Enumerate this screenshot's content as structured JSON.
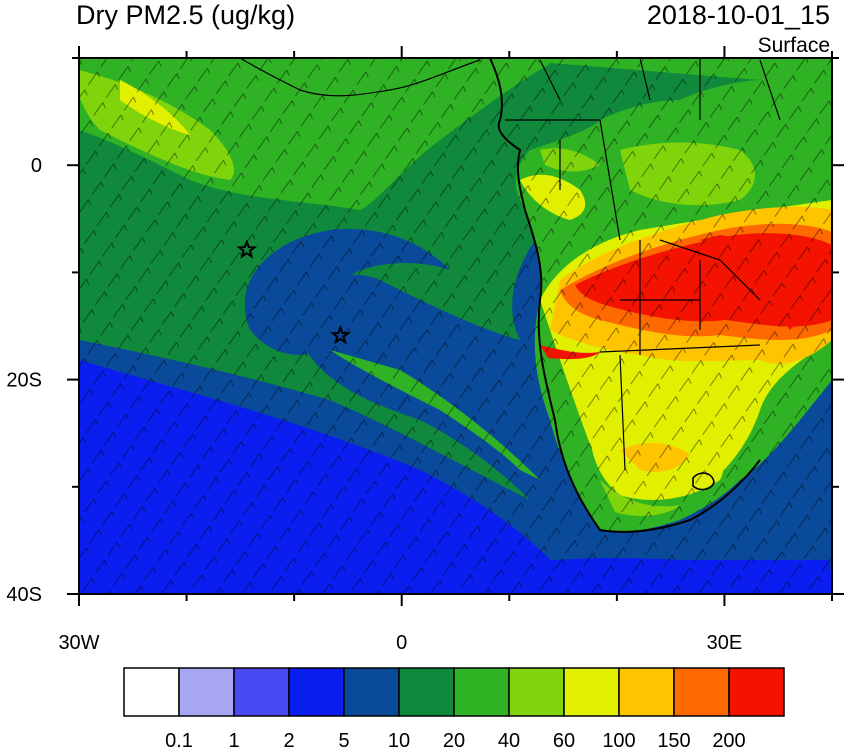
{
  "header": {
    "variable": "Dry PM2.5 (ug/kg)",
    "valid_time": "2018-10-01_15",
    "level": "Surface"
  },
  "map": {
    "lon_range": [
      -30,
      40
    ],
    "lat_range": [
      -40,
      10
    ],
    "x_ticks": [
      {
        "lon": -30,
        "label": "30W"
      },
      {
        "lon": 0,
        "label": "0"
      },
      {
        "lon": 30,
        "label": "30E"
      }
    ],
    "y_ticks": [
      {
        "lat": 0,
        "label": "0"
      },
      {
        "lat": -20,
        "label": "20S"
      },
      {
        "lat": -40,
        "label": "40S"
      }
    ],
    "markers": [
      {
        "name": "star-marker",
        "lon": -14.4,
        "lat": -7.9
      },
      {
        "name": "star-marker",
        "lon": -5.7,
        "lat": -15.9
      }
    ]
  },
  "colorbar": {
    "colors": [
      "#ffffff",
      "#a6a6f3",
      "#4a4af2",
      "#0a1ef0",
      "#0a4a9a",
      "#10893c",
      "#2fb224",
      "#80d40c",
      "#e0f000",
      "#ffc400",
      "#ff6a00",
      "#f41200"
    ],
    "labels": [
      "0.1",
      "1",
      "2",
      "5",
      "10",
      "20",
      "40",
      "60",
      "100",
      "150",
      "200"
    ]
  }
}
